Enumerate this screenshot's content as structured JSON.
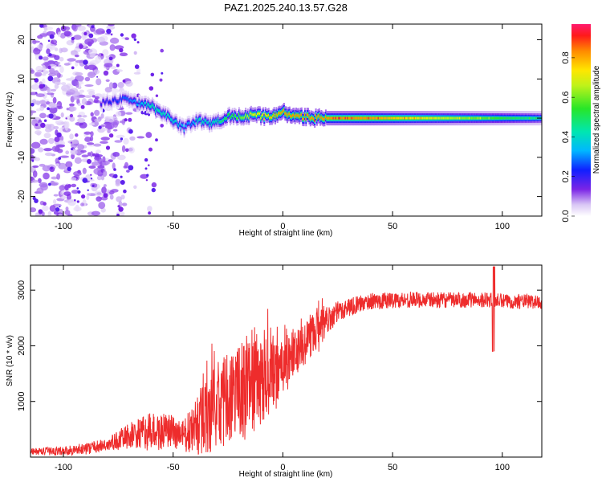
{
  "figure": {
    "title": "PAZ1.2025.240.13.57.G28"
  },
  "chart_data": [
    {
      "type": "heatmap",
      "name": "spectrogram",
      "xlabel": "Height of straight line (km)",
      "ylabel": "Frequency (Hz)",
      "xlim": [
        -115,
        118
      ],
      "ylim": [
        -25,
        24
      ],
      "xticks": [
        -100,
        -50,
        0,
        50,
        100
      ],
      "yticks": [
        20,
        10,
        0,
        -10,
        -20
      ],
      "colorbar": {
        "label": "Normalized spectral amplitude",
        "range": [
          0,
          0.97
        ],
        "ticks": [
          0.0,
          0.2,
          0.4,
          0.6,
          0.8
        ]
      },
      "ridge": {
        "x": [
          -83,
          -75,
          -70,
          -65,
          -60,
          -55,
          -50,
          -45,
          -42,
          -38,
          -34,
          -30,
          -25,
          -20,
          -15,
          -10,
          -5,
          0,
          5,
          10,
          15,
          20,
          30,
          40,
          50,
          60,
          70,
          80,
          90,
          100,
          110,
          118
        ],
        "freq": [
          4.0,
          4.5,
          5.0,
          3.5,
          3.0,
          1.5,
          -0.5,
          -2.5,
          -1.5,
          -0.5,
          -1.5,
          -1.0,
          0.5,
          0.5,
          0.8,
          0.5,
          0.5,
          1.5,
          0.5,
          0.2,
          0.0,
          0.0,
          0.0,
          0.0,
          0.0,
          0.0,
          0.0,
          0.0,
          0.0,
          0.0,
          0.0,
          0.0
        ],
        "amplitude": [
          0.2,
          0.25,
          0.3,
          0.35,
          0.45,
          0.45,
          0.4,
          0.35,
          0.3,
          0.45,
          0.4,
          0.45,
          0.55,
          0.6,
          0.7,
          0.75,
          0.8,
          0.85,
          0.85,
          0.85,
          0.85,
          0.85,
          0.85,
          0.85,
          0.8,
          0.75,
          0.7,
          0.65,
          0.6,
          0.55,
          0.5,
          0.45
        ]
      },
      "scatter_region": {
        "x_range": [
          -115,
          -60
        ],
        "freq_range": [
          -25,
          24
        ],
        "amplitude_range": [
          0.03,
          0.15
        ]
      }
    },
    {
      "type": "line",
      "name": "snr",
      "xlabel": "Height of straight line (km)",
      "ylabel": "SNR (10 * v/v)",
      "xlim": [
        -115,
        118
      ],
      "ylim": [
        0,
        3450
      ],
      "xticks": [
        -100,
        -50,
        0,
        50,
        100
      ],
      "yticks": [
        1000,
        2000,
        3000
      ],
      "color": "#ee2c2c",
      "trend": {
        "x": [
          -115,
          -100,
          -90,
          -80,
          -70,
          -60,
          -50,
          -45,
          -40,
          -35,
          -30,
          -25,
          -20,
          -15,
          -10,
          -5,
          0,
          5,
          10,
          15,
          20,
          25,
          30,
          40,
          50,
          60,
          70,
          80,
          90,
          95,
          100,
          110,
          118
        ],
        "y": [
          100,
          110,
          150,
          220,
          380,
          450,
          450,
          380,
          500,
          700,
          950,
          1050,
          1200,
          1250,
          1300,
          1450,
          1650,
          1900,
          2050,
          2250,
          2450,
          2600,
          2700,
          2800,
          2820,
          2830,
          2820,
          2820,
          2830,
          2820,
          2800,
          2800,
          2780
        ]
      },
      "noise_amplitude": {
        "x": [
          -115,
          -80,
          -60,
          -45,
          -35,
          -25,
          -15,
          0,
          15,
          25,
          35,
          118
        ],
        "amp": [
          60,
          120,
          350,
          300,
          700,
          800,
          900,
          500,
          350,
          200,
          150,
          130
        ]
      },
      "events": [
        {
          "x": 96,
          "min": 1900,
          "max": 3420
        }
      ]
    }
  ]
}
